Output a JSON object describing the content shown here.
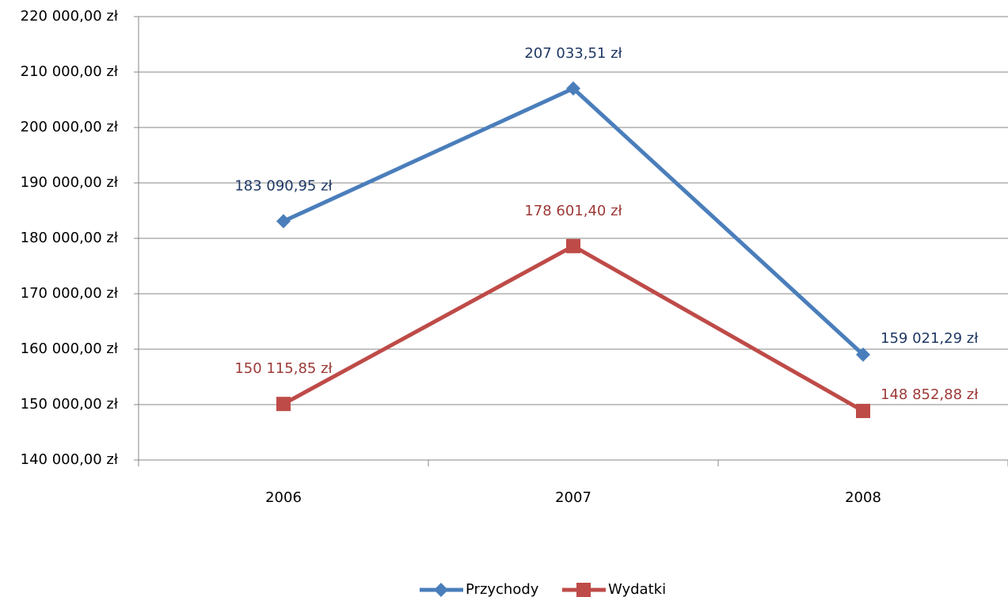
{
  "chart_data": {
    "type": "line",
    "categories": [
      "2006",
      "2007",
      "2008"
    ],
    "series": [
      {
        "name": "Przychody",
        "color": "#4a7ebb",
        "marker": "diamond",
        "label_color": "#1f3864",
        "values": [
          183090.95,
          207033.51,
          159021.29
        ],
        "value_labels": [
          "183 090,95 zł",
          "207 033,51 zł",
          "159 021,29 zł"
        ]
      },
      {
        "name": "Wydatki",
        "color": "#be4b48",
        "marker": "square",
        "label_color": "#9c3a37",
        "values": [
          150115.85,
          178601.4,
          148852.88
        ],
        "value_labels": [
          "150 115,85 zł",
          "178 601,40 zł",
          "148 852,88 zł"
        ]
      }
    ],
    "ylim": [
      140000,
      220000
    ],
    "yticks": [
      {
        "value": 140000,
        "label": "140 000,00 zł"
      },
      {
        "value": 150000,
        "label": "150 000,00 zł"
      },
      {
        "value": 160000,
        "label": "160 000,00 zł"
      },
      {
        "value": 170000,
        "label": "170 000,00 zł"
      },
      {
        "value": 180000,
        "label": "180 000,00 zł"
      },
      {
        "value": 190000,
        "label": "190 000,00 zł"
      },
      {
        "value": 200000,
        "label": "200 000,00 zł"
      },
      {
        "value": 210000,
        "label": "210 000,00 zł"
      },
      {
        "value": 220000,
        "label": "220 000,00 zł"
      }
    ],
    "grid": true,
    "legend": "bottom"
  }
}
